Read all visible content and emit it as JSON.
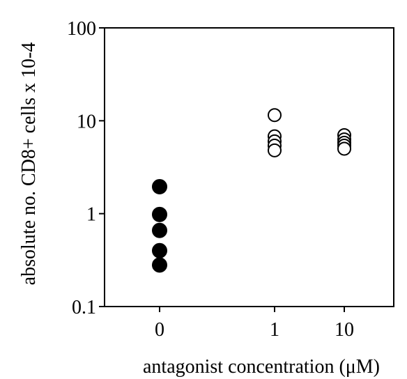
{
  "chart_data": {
    "type": "scatter",
    "title": "",
    "xlabel": "antagonist concentration (μM)",
    "ylabel": "absolute no. CD8+ cells x 10-4",
    "x_categories": [
      "0",
      "1",
      "10"
    ],
    "y_scale": "log",
    "ylim": [
      0.1,
      100
    ],
    "y_ticks": [
      {
        "value": 0.1,
        "label": "0.1"
      },
      {
        "value": 1,
        "label": "1"
      },
      {
        "value": 10,
        "label": "10"
      },
      {
        "value": 100,
        "label": "100"
      }
    ],
    "grid": false,
    "series": [
      {
        "marker": "filled-circle",
        "color": "#000000",
        "points": [
          {
            "x": "0",
            "y": 1.95
          },
          {
            "x": "0",
            "y": 0.98
          },
          {
            "x": "0",
            "y": 0.66
          },
          {
            "x": "0",
            "y": 0.4
          },
          {
            "x": "0",
            "y": 0.28
          }
        ]
      },
      {
        "marker": "open-circle",
        "color": "#000000",
        "points": [
          {
            "x": "1",
            "y": 11.5
          },
          {
            "x": "1",
            "y": 6.8
          },
          {
            "x": "1",
            "y": 6.0
          },
          {
            "x": "1",
            "y": 5.4
          },
          {
            "x": "1",
            "y": 4.8
          },
          {
            "x": "10",
            "y": 7.0
          },
          {
            "x": "10",
            "y": 6.3
          },
          {
            "x": "10",
            "y": 5.8
          },
          {
            "x": "10",
            "y": 5.4
          },
          {
            "x": "10",
            "y": 5.0
          }
        ]
      }
    ]
  }
}
